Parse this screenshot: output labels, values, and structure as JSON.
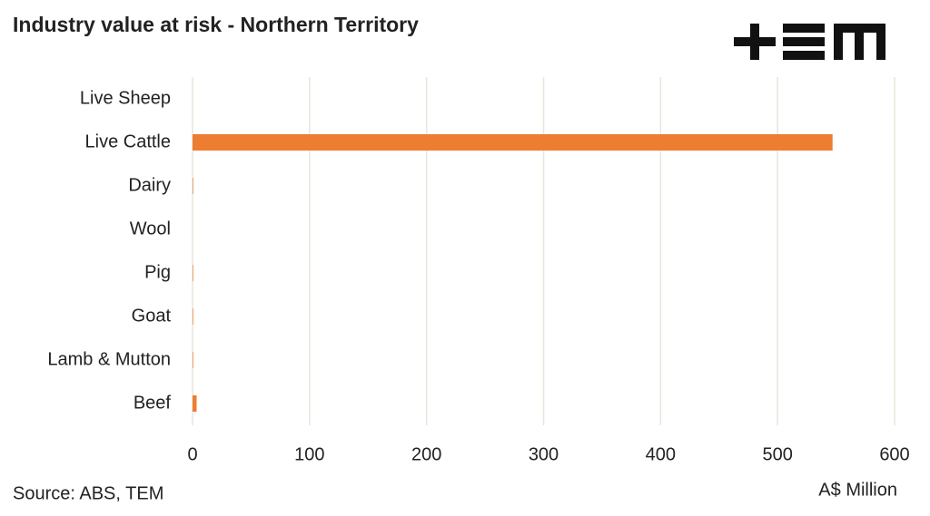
{
  "chart_data": {
    "type": "hbar",
    "title": "Industry value at risk - Northern Territory",
    "categories": [
      "Live Sheep",
      "Live Cattle",
      "Dairy",
      "Wool",
      "Pig",
      "Goat",
      "Lamb & Mutton",
      "Beef"
    ],
    "values": [
      0,
      547,
      0.5,
      0,
      0.5,
      0.5,
      0.5,
      3.5
    ],
    "color": "#ed7d31",
    "xlim": [
      0,
      600
    ],
    "xticks": [
      0,
      100,
      200,
      300,
      400,
      500,
      600
    ],
    "grid": true,
    "x_label": "A$ Million",
    "source": "Source: ABS, TEM"
  }
}
